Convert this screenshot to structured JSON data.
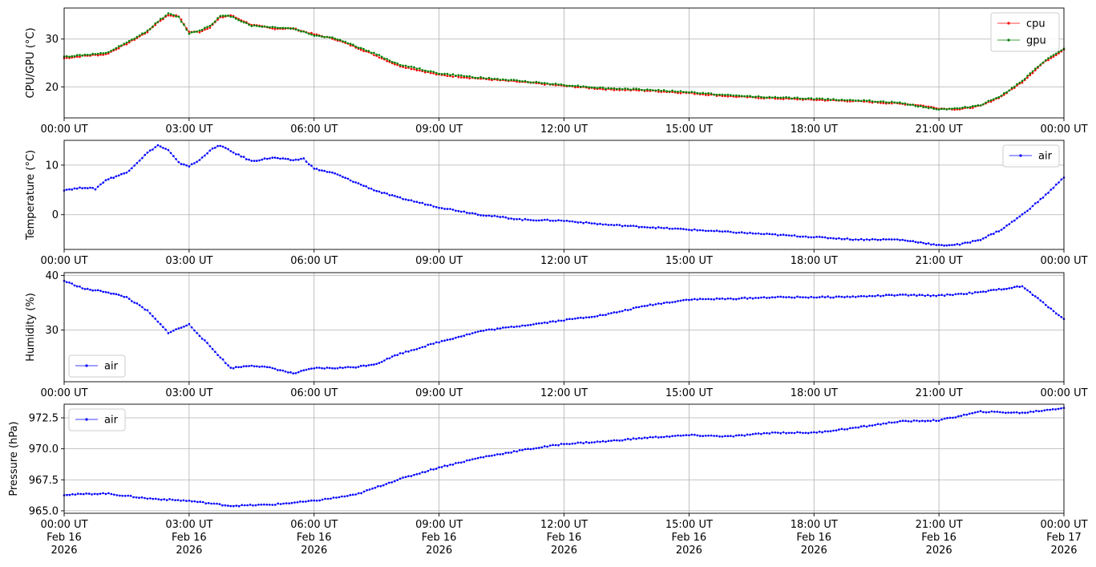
{
  "chart_data": [
    {
      "type": "scatter",
      "ylabel": "CPU/GPU (°C)",
      "ylim": [
        13.5,
        36.5
      ],
      "yticks": [
        20,
        30
      ],
      "xlim": [
        "2026-02-16T00:00",
        "2026-02-17T00:00"
      ],
      "xtick_labels": [
        "00:00 UT",
        "03:00 UT",
        "06:00 UT",
        "09:00 UT",
        "12:00 UT",
        "15:00 UT",
        "18:00 UT",
        "21:00 UT",
        "00:00 UT"
      ],
      "grid": true,
      "legend_placement": "upper-right",
      "series": [
        {
          "name": "cpu",
          "color": "#ff0000",
          "x": [
            "2026-02-16T00:00",
            "2026-02-16T00:30",
            "2026-02-16T01:00",
            "2026-02-16T01:30",
            "2026-02-16T02:00",
            "2026-02-16T02:15",
            "2026-02-16T02:30",
            "2026-02-16T02:45",
            "2026-02-16T03:00",
            "2026-02-16T03:15",
            "2026-02-16T03:30",
            "2026-02-16T03:45",
            "2026-02-16T04:00",
            "2026-02-16T04:30",
            "2026-02-16T05:00",
            "2026-02-16T05:30",
            "2026-02-16T06:00",
            "2026-02-16T06:30",
            "2026-02-16T07:00",
            "2026-02-16T07:30",
            "2026-02-16T08:00",
            "2026-02-16T09:00",
            "2026-02-16T10:00",
            "2026-02-16T11:00",
            "2026-02-16T12:00",
            "2026-02-16T13:00",
            "2026-02-16T14:00",
            "2026-02-16T15:00",
            "2026-02-16T16:00",
            "2026-02-16T17:00",
            "2026-02-16T18:00",
            "2026-02-16T19:00",
            "2026-02-16T20:00",
            "2026-02-16T20:30",
            "2026-02-16T21:00",
            "2026-02-16T21:30",
            "2026-02-16T22:00",
            "2026-02-16T22:30",
            "2026-02-16T23:00",
            "2026-02-16T23:30",
            "2026-02-17T00:00"
          ],
          "y": [
            26.0,
            26.5,
            26.8,
            29.0,
            31.5,
            33.5,
            35.0,
            34.8,
            31.5,
            31.5,
            32.5,
            34.5,
            35.0,
            33.0,
            32.2,
            32.2,
            31.0,
            30.0,
            28.3,
            26.5,
            24.5,
            22.5,
            21.7,
            21.0,
            20.2,
            19.5,
            19.2,
            18.7,
            18.0,
            17.6,
            17.3,
            17.0,
            16.5,
            16.2,
            15.5,
            15.3,
            16.0,
            18.0,
            21.0,
            25.0,
            27.8
          ]
        },
        {
          "name": "gpu",
          "color": "#008000",
          "x": [
            "2026-02-16T00:00",
            "2026-02-16T00:30",
            "2026-02-16T01:00",
            "2026-02-16T01:30",
            "2026-02-16T02:00",
            "2026-02-16T02:15",
            "2026-02-16T02:30",
            "2026-02-16T02:45",
            "2026-02-16T03:00",
            "2026-02-16T03:15",
            "2026-02-16T03:30",
            "2026-02-16T03:45",
            "2026-02-16T04:00",
            "2026-02-16T04:30",
            "2026-02-16T05:00",
            "2026-02-16T05:30",
            "2026-02-16T06:00",
            "2026-02-16T06:30",
            "2026-02-16T07:00",
            "2026-02-16T07:30",
            "2026-02-16T08:00",
            "2026-02-16T09:00",
            "2026-02-16T10:00",
            "2026-02-16T11:00",
            "2026-02-16T12:00",
            "2026-02-16T13:00",
            "2026-02-16T14:00",
            "2026-02-16T15:00",
            "2026-02-16T16:00",
            "2026-02-16T17:00",
            "2026-02-16T18:00",
            "2026-02-16T19:00",
            "2026-02-16T20:00",
            "2026-02-16T20:30",
            "2026-02-16T21:00",
            "2026-02-16T21:30",
            "2026-02-16T22:00",
            "2026-02-16T22:30",
            "2026-02-16T23:00",
            "2026-02-16T23:30",
            "2026-02-17T00:00"
          ],
          "y": [
            26.3,
            26.7,
            27.0,
            29.2,
            31.7,
            33.7,
            35.3,
            34.6,
            31.2,
            31.8,
            32.8,
            34.8,
            34.8,
            32.8,
            32.5,
            32.2,
            30.8,
            30.2,
            28.5,
            26.8,
            24.8,
            22.8,
            21.9,
            21.2,
            20.4,
            19.7,
            19.4,
            18.9,
            18.2,
            17.8,
            17.5,
            17.2,
            16.7,
            16.0,
            15.3,
            15.5,
            16.2,
            18.2,
            21.2,
            25.2,
            28.0
          ]
        }
      ]
    },
    {
      "type": "scatter",
      "ylabel": "Temperature (°C)",
      "ylim": [
        -7,
        15
      ],
      "yticks": [
        0,
        10
      ],
      "xlim": [
        "2026-02-16T00:00",
        "2026-02-17T00:00"
      ],
      "xtick_labels": [
        "00:00 UT",
        "03:00 UT",
        "06:00 UT",
        "09:00 UT",
        "12:00 UT",
        "15:00 UT",
        "18:00 UT",
        "21:00 UT",
        "00:00 UT"
      ],
      "grid": true,
      "legend_placement": "upper-right",
      "series": [
        {
          "name": "air",
          "color": "#0000ff",
          "x": [
            "2026-02-16T00:00",
            "2026-02-16T00:30",
            "2026-02-16T00:45",
            "2026-02-16T01:00",
            "2026-02-16T01:30",
            "2026-02-16T02:00",
            "2026-02-16T02:15",
            "2026-02-16T02:30",
            "2026-02-16T02:45",
            "2026-02-16T03:00",
            "2026-02-16T03:15",
            "2026-02-16T03:30",
            "2026-02-16T03:45",
            "2026-02-16T04:00",
            "2026-02-16T04:30",
            "2026-02-16T05:00",
            "2026-02-16T05:30",
            "2026-02-16T05:45",
            "2026-02-16T06:00",
            "2026-02-16T06:30",
            "2026-02-16T07:00",
            "2026-02-16T07:30",
            "2026-02-16T08:00",
            "2026-02-16T09:00",
            "2026-02-16T10:00",
            "2026-02-16T11:00",
            "2026-02-16T12:00",
            "2026-02-16T13:00",
            "2026-02-16T14:00",
            "2026-02-16T15:00",
            "2026-02-16T16:00",
            "2026-02-16T17:00",
            "2026-02-16T18:00",
            "2026-02-16T19:00",
            "2026-02-16T20:00",
            "2026-02-16T20:30",
            "2026-02-16T21:00",
            "2026-02-16T21:30",
            "2026-02-16T22:00",
            "2026-02-16T22:30",
            "2026-02-16T23:00",
            "2026-02-16T23:30",
            "2026-02-17T00:00"
          ],
          "y": [
            5.0,
            5.5,
            5.2,
            7.0,
            8.5,
            12.5,
            14.0,
            13.0,
            10.5,
            9.8,
            11.0,
            13.0,
            14.0,
            12.8,
            10.8,
            11.5,
            11.0,
            11.3,
            9.3,
            8.3,
            6.5,
            4.8,
            3.5,
            1.5,
            0.0,
            -1.0,
            -1.2,
            -2.0,
            -2.5,
            -3.0,
            -3.5,
            -4.0,
            -4.5,
            -5.0,
            -5.0,
            -5.5,
            -6.2,
            -6.0,
            -5.0,
            -3.0,
            0.0,
            3.5,
            7.5
          ]
        }
      ]
    },
    {
      "type": "scatter",
      "ylabel": "Humidity (%)",
      "ylim": [
        20.5,
        40.5
      ],
      "yticks": [
        30,
        40
      ],
      "xlim": [
        "2026-02-16T00:00",
        "2026-02-17T00:00"
      ],
      "xtick_labels": [
        "00:00 UT",
        "03:00 UT",
        "06:00 UT",
        "09:00 UT",
        "12:00 UT",
        "15:00 UT",
        "18:00 UT",
        "21:00 UT",
        "00:00 UT"
      ],
      "grid": true,
      "legend_placement": "lower-left",
      "series": [
        {
          "name": "air",
          "color": "#0000ff",
          "x": [
            "2026-02-16T00:00",
            "2026-02-16T00:30",
            "2026-02-16T01:00",
            "2026-02-16T01:30",
            "2026-02-16T02:00",
            "2026-02-16T02:30",
            "2026-02-16T03:00",
            "2026-02-16T03:30",
            "2026-02-16T04:00",
            "2026-02-16T04:30",
            "2026-02-16T05:00",
            "2026-02-16T05:30",
            "2026-02-16T06:00",
            "2026-02-16T06:30",
            "2026-02-16T07:00",
            "2026-02-16T07:30",
            "2026-02-16T08:00",
            "2026-02-16T09:00",
            "2026-02-16T10:00",
            "2026-02-16T11:00",
            "2026-02-16T12:00",
            "2026-02-16T13:00",
            "2026-02-16T14:00",
            "2026-02-16T15:00",
            "2026-02-16T16:00",
            "2026-02-16T17:00",
            "2026-02-16T18:00",
            "2026-02-16T19:00",
            "2026-02-16T20:00",
            "2026-02-16T21:00",
            "2026-02-16T22:00",
            "2026-02-16T22:30",
            "2026-02-16T23:00",
            "2026-02-16T23:30",
            "2026-02-17T00:00"
          ],
          "y": [
            39.0,
            37.5,
            37.0,
            36.0,
            33.5,
            29.5,
            31.0,
            27.0,
            23.0,
            23.5,
            23.0,
            22.0,
            23.0,
            23.0,
            23.2,
            23.8,
            25.5,
            27.8,
            29.8,
            30.8,
            31.8,
            32.8,
            34.5,
            35.6,
            35.7,
            36.0,
            36.0,
            36.1,
            36.4,
            36.3,
            36.9,
            37.5,
            38.0,
            35.0,
            32.0
          ]
        }
      ]
    },
    {
      "type": "scatter",
      "ylabel": "Pressure (hPa)",
      "ylim": [
        964.8,
        973.6
      ],
      "yticks": [
        965.0,
        967.5,
        970.0,
        972.5
      ],
      "ytick_labels": [
        "965.0",
        "967.5",
        "970.0",
        "972.5"
      ],
      "xlim": [
        "2026-02-16T00:00",
        "2026-02-17T00:00"
      ],
      "xtick_labels": [
        "00:00 UT\nFeb 16\n2026",
        "03:00 UT\nFeb 16\n2026",
        "06:00 UT\nFeb 16\n2026",
        "09:00 UT\nFeb 16\n2026",
        "12:00 UT\nFeb 16\n2026",
        "15:00 UT\nFeb 16\n2026",
        "18:00 UT\nFeb 16\n2026",
        "21:00 UT\nFeb 16\n2026",
        "00:00 UT\nFeb 17\n2026"
      ],
      "grid": true,
      "legend_placement": "upper-left",
      "series": [
        {
          "name": "air",
          "color": "#0000ff",
          "x": [
            "2026-02-16T00:00",
            "2026-02-16T01:00",
            "2026-02-16T02:00",
            "2026-02-16T03:00",
            "2026-02-16T04:00",
            "2026-02-16T05:00",
            "2026-02-16T06:00",
            "2026-02-16T07:00",
            "2026-02-16T08:00",
            "2026-02-16T09:00",
            "2026-02-16T10:00",
            "2026-02-16T11:00",
            "2026-02-16T12:00",
            "2026-02-16T13:00",
            "2026-02-16T14:00",
            "2026-02-16T15:00",
            "2026-02-16T16:00",
            "2026-02-16T17:00",
            "2026-02-16T18:00",
            "2026-02-16T19:00",
            "2026-02-16T20:00",
            "2026-02-16T21:00",
            "2026-02-16T22:00",
            "2026-02-16T23:00",
            "2026-02-17T00:00"
          ],
          "y": [
            966.3,
            966.4,
            966.0,
            965.8,
            965.4,
            965.5,
            965.8,
            966.3,
            967.5,
            968.5,
            969.3,
            969.9,
            970.4,
            970.6,
            970.9,
            971.1,
            971.0,
            971.3,
            971.3,
            971.7,
            972.2,
            972.3,
            973.0,
            972.9,
            973.3
          ]
        }
      ]
    }
  ]
}
